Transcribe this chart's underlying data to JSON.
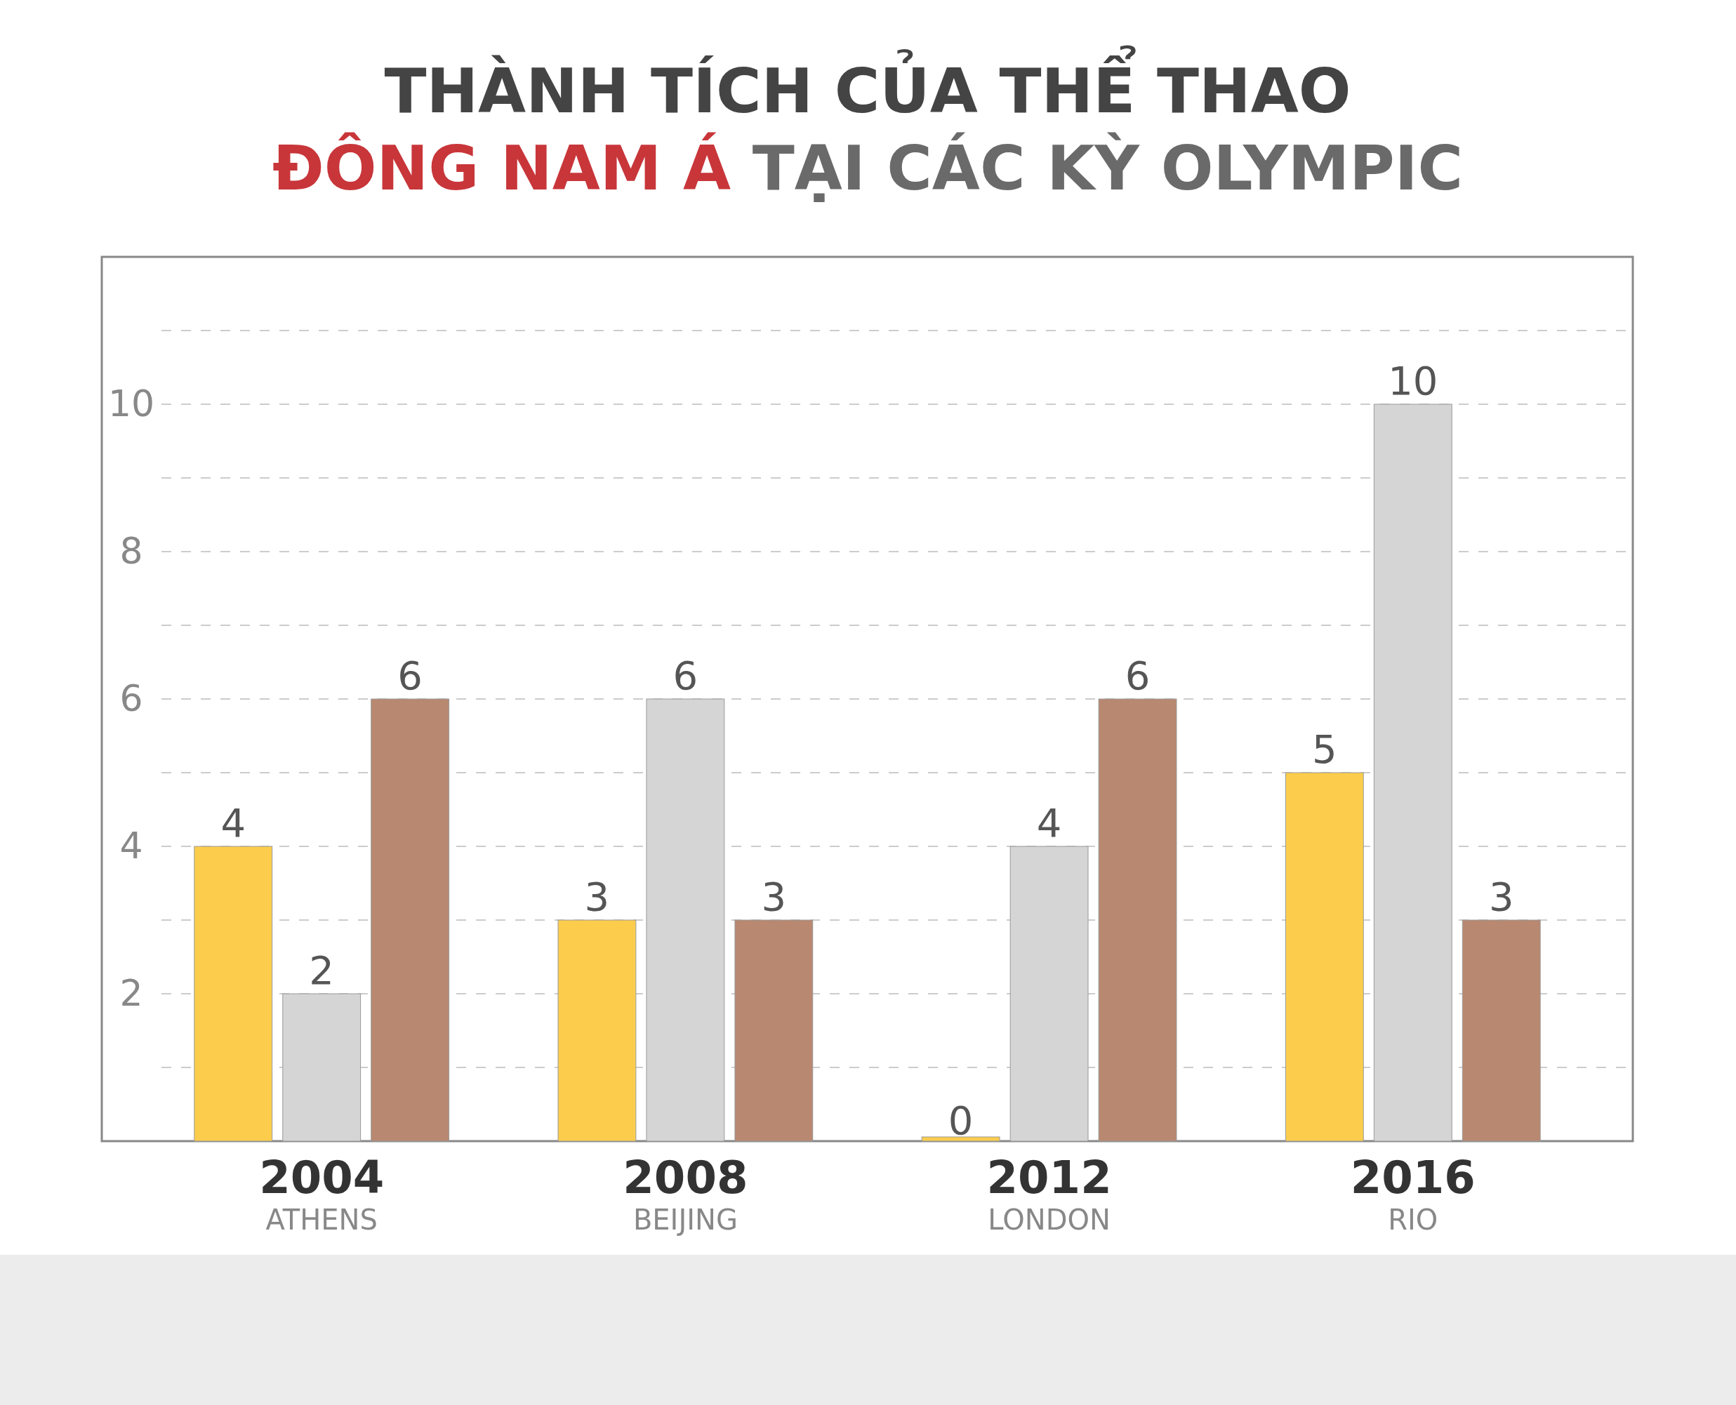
{
  "chart_data": {
    "type": "bar",
    "title": "THÀNH TÍCH CỦA THỂ THAO\nĐÔNG NAM Á TẠI CÁC KỲ OLYMPIC",
    "categories": [
      "2004\nATHENS",
      "2008\nBEIJING",
      "2012\nLONDON",
      "2016\nRIO"
    ],
    "series": [
      {
        "color": "#fccd4d",
        "values": [
          4,
          3,
          0,
          5
        ]
      },
      {
        "color": "#d5d5d5",
        "values": [
          2,
          6,
          4,
          10
        ]
      },
      {
        "color": "#b88870",
        "values": [
          6,
          3,
          6,
          3
        ]
      }
    ],
    "ylim": [
      0,
      12
    ],
    "yticks": [
      {
        "value": 1,
        "label": null
      },
      2,
      {
        "value": 3,
        "label": null
      },
      4,
      {
        "value": 5,
        "label": null
      },
      6,
      {
        "value": 7,
        "label": null
      },
      8,
      {
        "value": 9,
        "label": null
      },
      10,
      {
        "value": 11,
        "label": null
      }
    ],
    "grid": "y",
    "line_style": "dashed",
    "data_labels": true
  }
}
